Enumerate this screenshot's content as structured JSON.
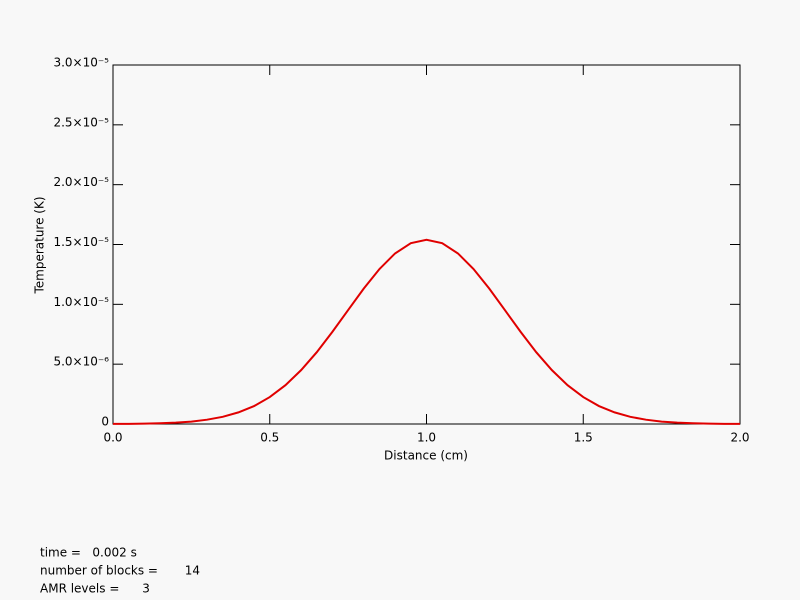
{
  "chart_data": {
    "type": "line",
    "xlabel": "Distance (cm)",
    "ylabel": "Temperature (K)",
    "x": [
      0,
      0.05,
      0.1,
      0.15,
      0.2,
      0.25,
      0.3,
      0.35,
      0.4,
      0.45,
      0.5,
      0.55,
      0.6,
      0.65,
      0.7,
      0.75,
      0.8,
      0.85,
      0.9,
      0.95,
      1.0,
      1.05,
      1.1,
      1.15,
      1.2,
      1.25,
      1.3,
      1.35,
      1.4,
      1.45,
      1.5,
      1.55,
      1.6,
      1.65,
      1.7,
      1.75,
      1.8,
      1.85,
      1.9,
      1.95,
      2.0
    ],
    "series": [
      {
        "color": "#e00000",
        "values": [
          7e-09,
          1.5e-08,
          3e-08,
          6e-08,
          1.1e-07,
          2e-07,
          3.6e-07,
          6e-07,
          9.7e-07,
          1.5e-06,
          2.25e-06,
          3.24e-06,
          4.5e-06,
          6e-06,
          7.71e-06,
          9.52e-06,
          1.132e-05,
          1.295e-05,
          1.426e-05,
          1.511e-05,
          1.54e-05,
          1.511e-05,
          1.426e-05,
          1.295e-05,
          1.132e-05,
          9.52e-06,
          7.71e-06,
          6e-06,
          4.5e-06,
          3.24e-06,
          2.25e-06,
          1.5e-06,
          9.7e-07,
          6e-07,
          3.6e-07,
          2e-07,
          1.1e-07,
          6e-08,
          3e-08,
          1.5e-08,
          7e-09
        ]
      }
    ],
    "xlim": [
      0,
      2.0
    ],
    "xticks": [
      {
        "value": 0,
        "label": "0.0"
      },
      0.5,
      {
        "value": 1,
        "label": "1.0"
      },
      1.5,
      {
        "value": 2,
        "label": "2.0"
      }
    ],
    "ylim": [
      0,
      3e-05
    ],
    "yticks": [
      0,
      {
        "value": 5e-06,
        "label": "5.0×10⁻⁶"
      },
      {
        "value": 1e-05,
        "label": "1.0×10⁻⁵"
      },
      {
        "value": 1.5e-05,
        "label": "1.5×10⁻⁵"
      },
      {
        "value": 2e-05,
        "label": "2.0×10⁻⁵"
      },
      {
        "value": 2.5e-05,
        "label": "2.5×10⁻⁵"
      },
      {
        "value": 3e-05,
        "label": "3.0×10⁻⁵"
      }
    ],
    "annotations": [
      "time =   0.002 s",
      "number of blocks =       14",
      "AMR levels =      3"
    ]
  }
}
